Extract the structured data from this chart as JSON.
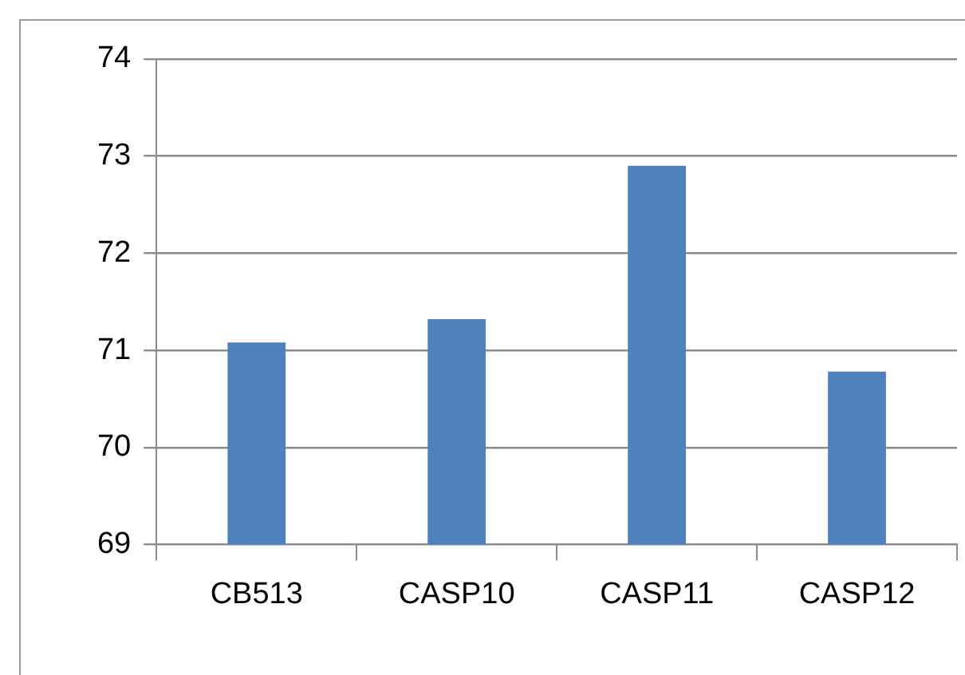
{
  "chart_data": {
    "type": "bar",
    "categories": [
      "CB513",
      "CASP10",
      "CASP11",
      "CASP12"
    ],
    "values": [
      71.08,
      71.32,
      72.9,
      70.78
    ],
    "color": "#4f81bd",
    "ylim": [
      69,
      74
    ],
    "yticks": [
      69,
      70,
      71,
      72,
      73,
      74
    ],
    "grid": "y"
  }
}
